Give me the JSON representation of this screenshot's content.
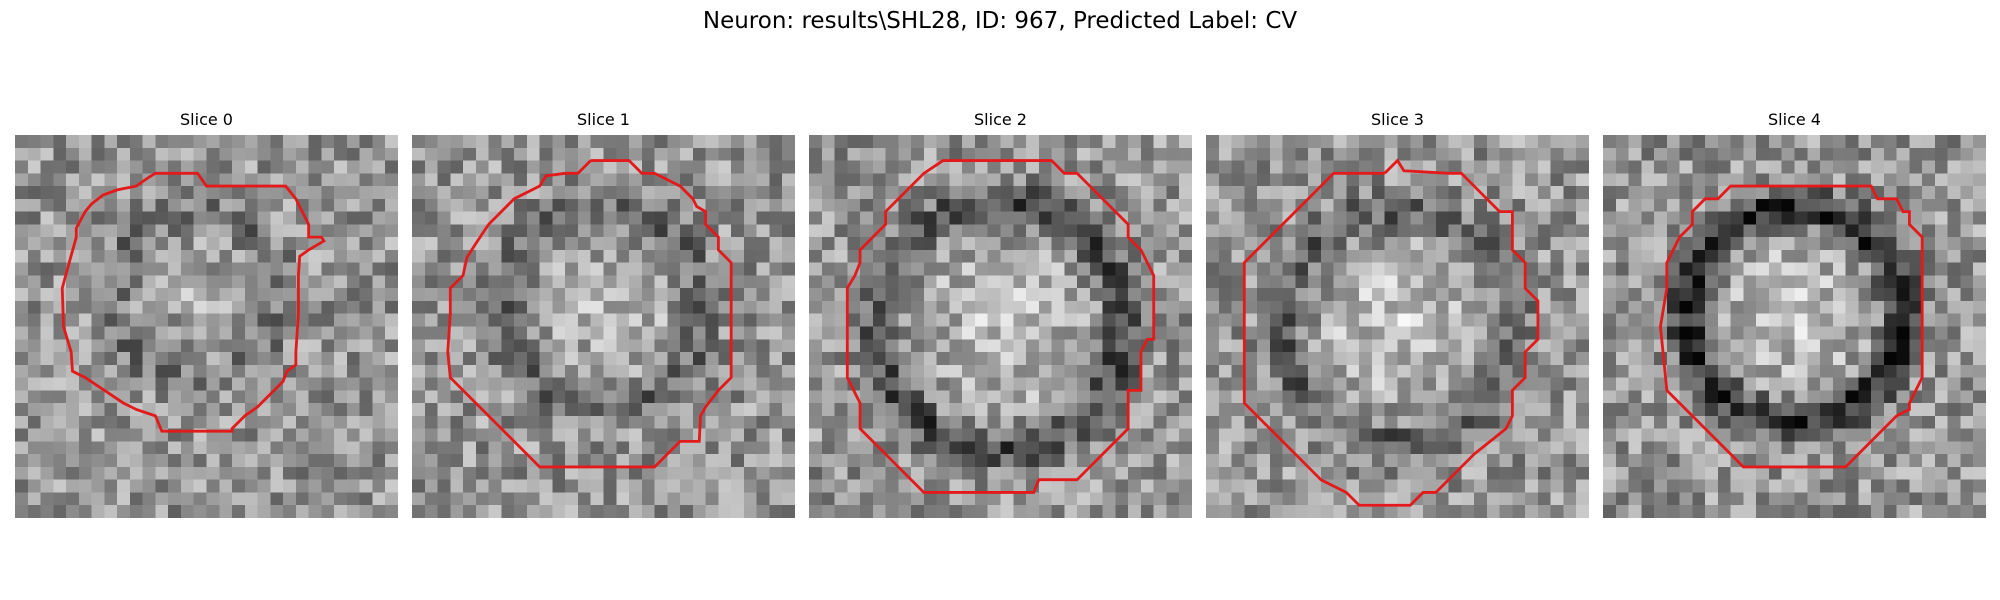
{
  "figure": {
    "title": "Neuron: results\\SHL28, ID: 967, Predicted Label: CV",
    "contour_color": "#e31a1c"
  },
  "panels": [
    {
      "title": "Slice 0",
      "seed": 11,
      "center": [
        0.47,
        0.42
      ],
      "ring": 0.22,
      "ringDark": 35,
      "bright": 20
    },
    {
      "title": "Slice 1",
      "seed": 23,
      "center": [
        0.5,
        0.45
      ],
      "ring": 0.26,
      "ringDark": 45,
      "bright": 35
    },
    {
      "title": "Slice 2",
      "seed": 37,
      "center": [
        0.5,
        0.5
      ],
      "ring": 0.32,
      "ringDark": 80,
      "bright": 45
    },
    {
      "title": "Slice 3",
      "seed": 51,
      "center": [
        0.5,
        0.5
      ],
      "ring": 0.3,
      "ringDark": 55,
      "bright": 50
    },
    {
      "title": "Slice 4",
      "seed": 67,
      "center": [
        0.5,
        0.47
      ],
      "ring": 0.28,
      "ringDark": 110,
      "bright": 55
    }
  ]
}
